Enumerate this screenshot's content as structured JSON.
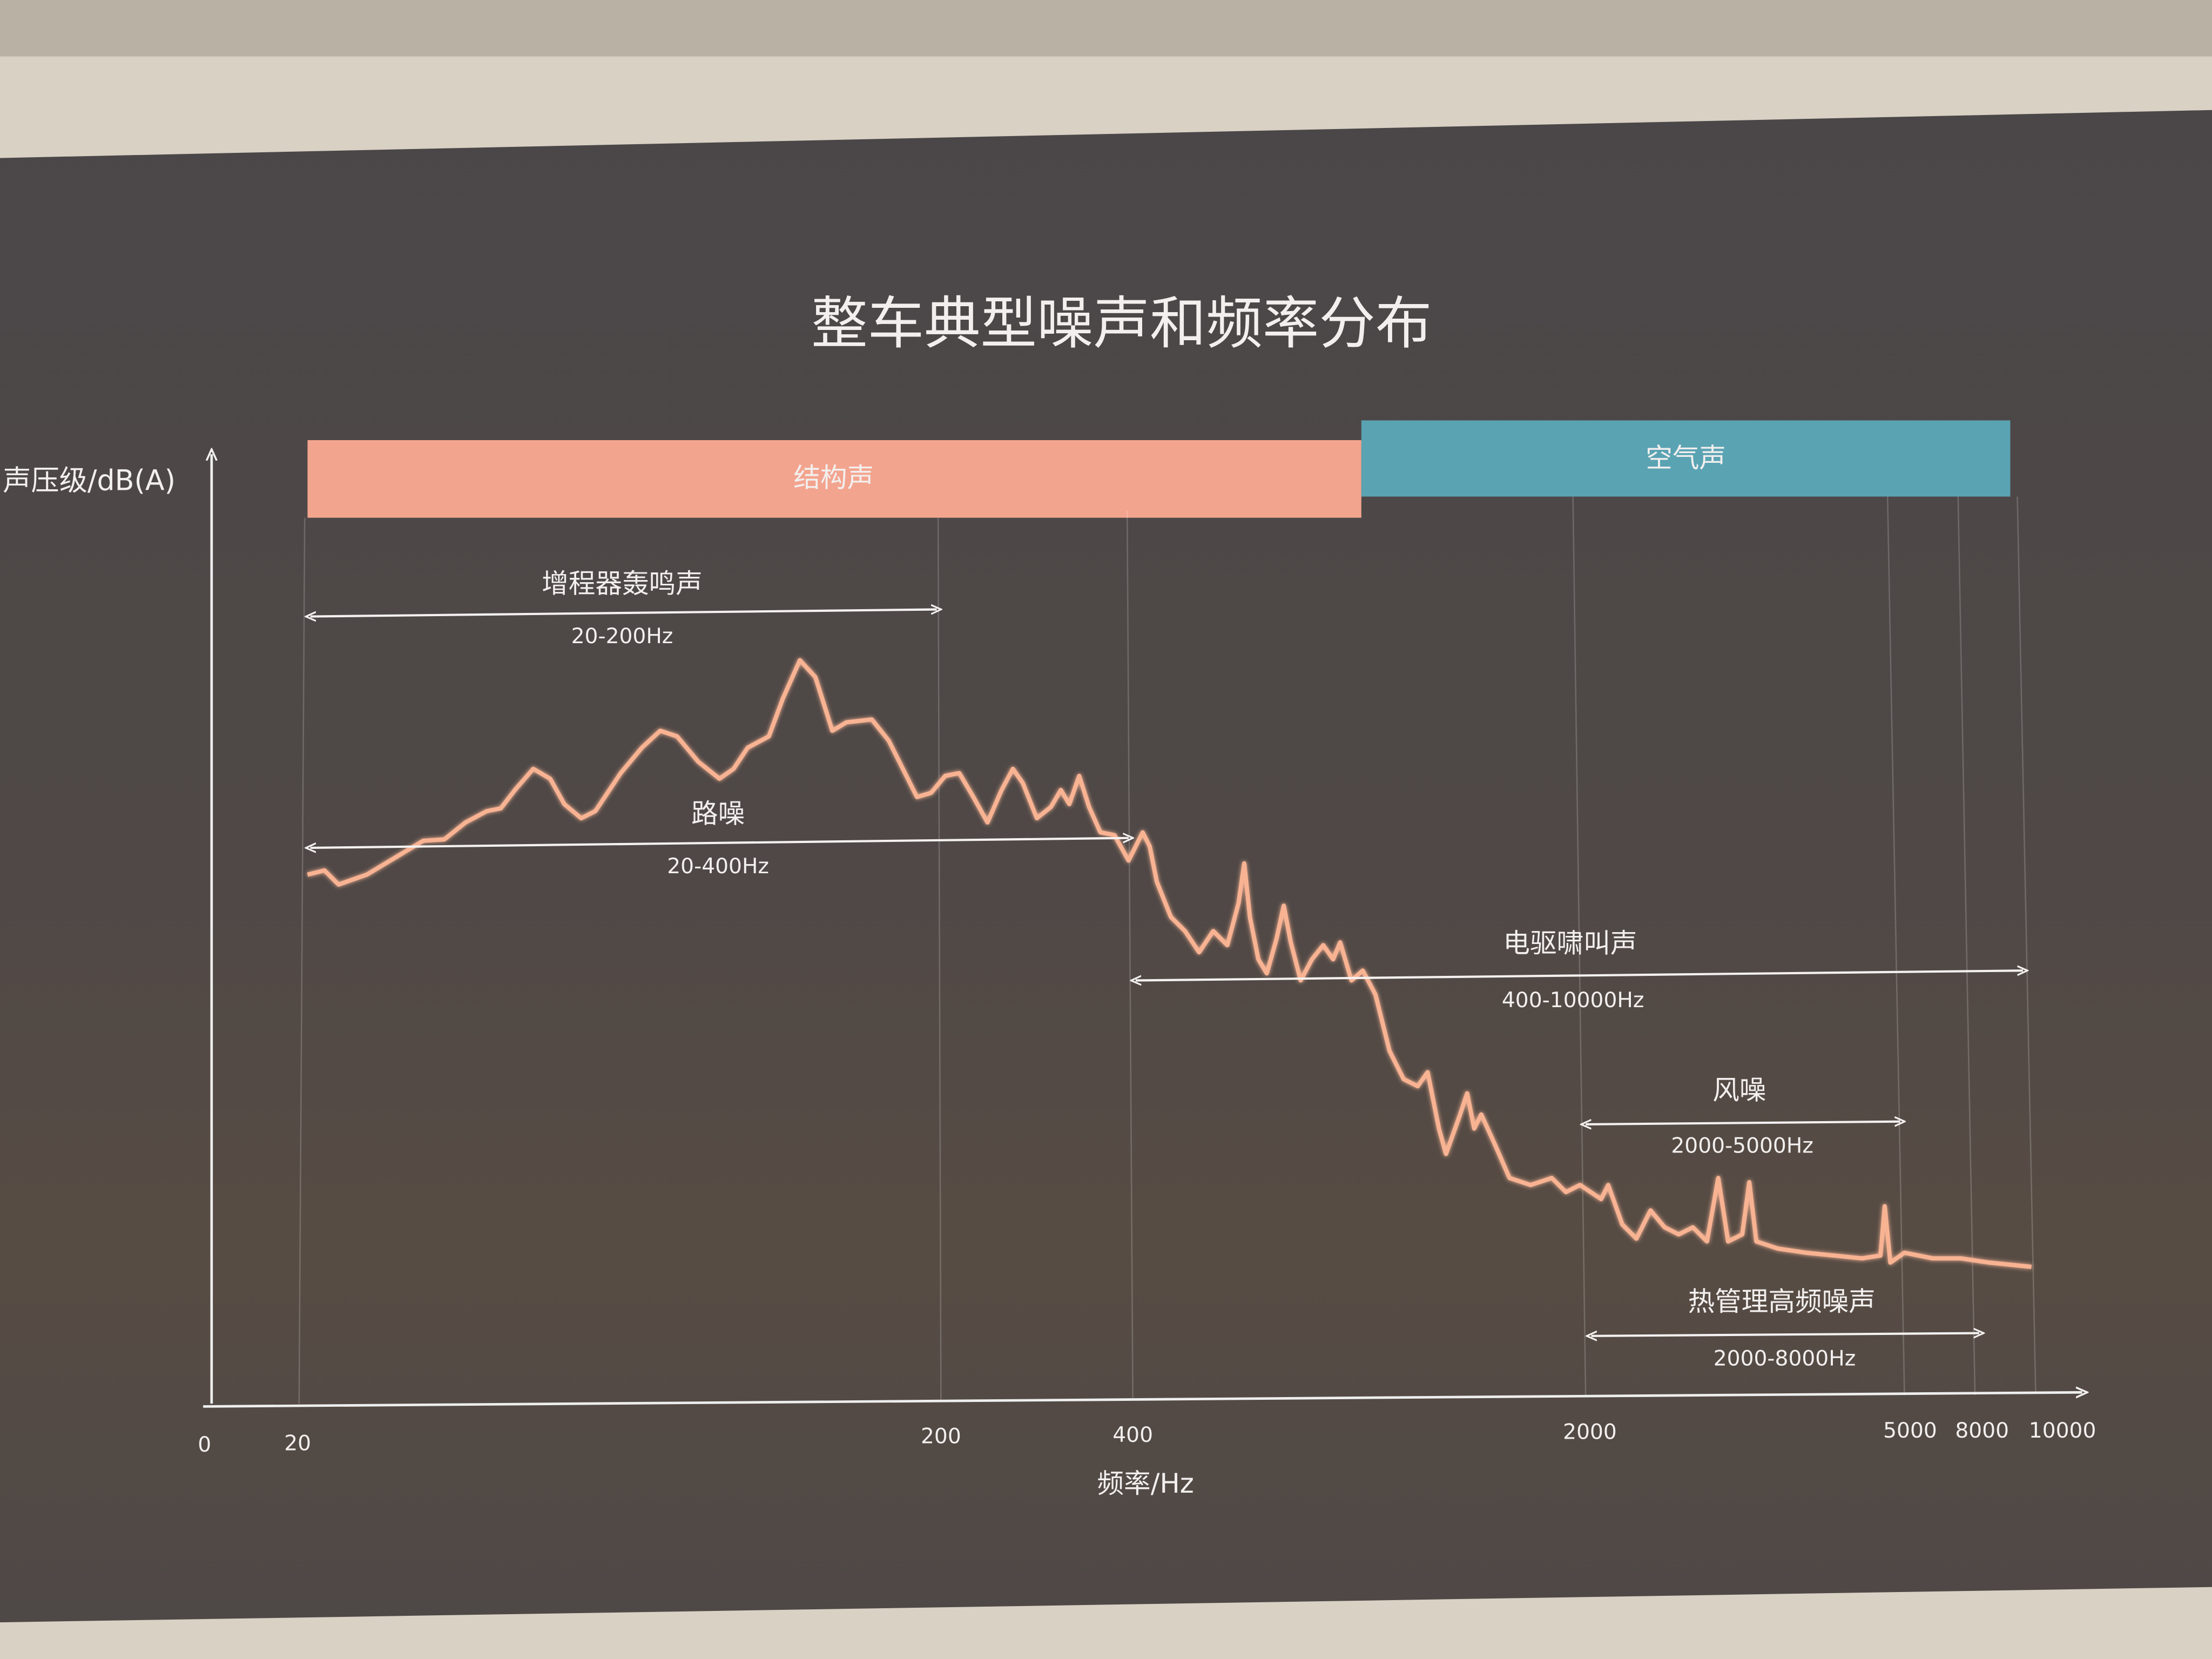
{
  "title": "整车典型噪声和频率分布",
  "y_axis_label": "声压级/dB(A)",
  "x_axis_label": "频率/Hz",
  "bands": [
    {
      "label": "结构声"
    },
    {
      "label": "空气声"
    }
  ],
  "ranges": [
    {
      "label": "增程器轰鸣声",
      "range": "20-200Hz"
    },
    {
      "label": "路噪",
      "range": "20-400Hz"
    },
    {
      "label": "电驱啸叫声",
      "range": "400-10000Hz"
    },
    {
      "label": "风噪",
      "range": "2000-5000Hz"
    },
    {
      "label": "热管理高频噪声",
      "range": "2000-8000Hz"
    }
  ],
  "x_ticks": [
    "0",
    "20",
    "200",
    "400",
    "2000",
    "5000",
    "8000",
    "10000"
  ]
}
